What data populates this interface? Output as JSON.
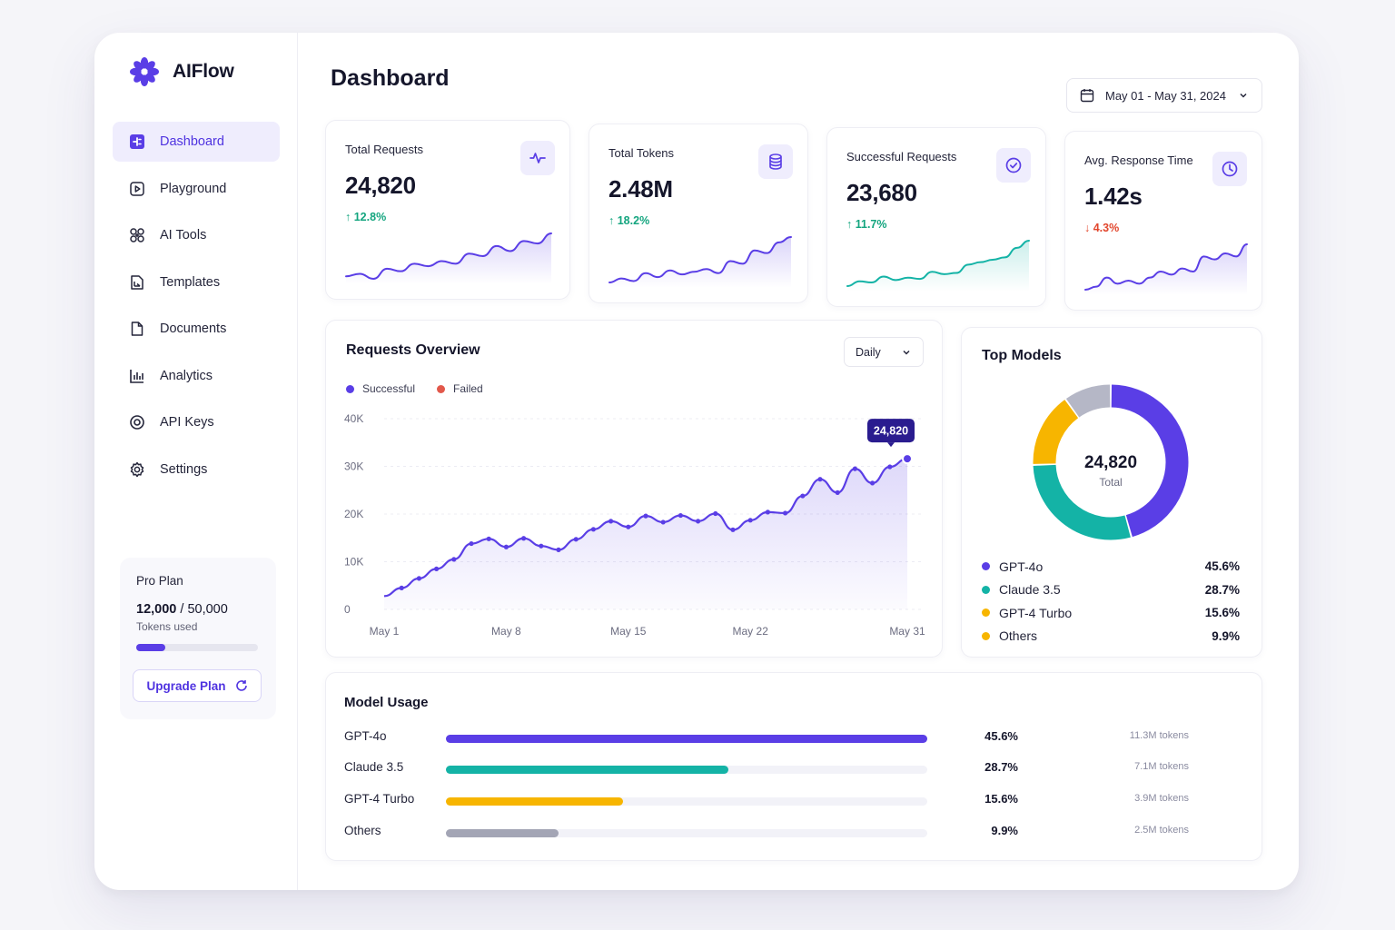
{
  "brand": {
    "name": "AIFlow",
    "accent": "#5a3ee6"
  },
  "sidebar": {
    "items": [
      {
        "label": "Dashboard",
        "icon": "dashboard-icon",
        "active": true
      },
      {
        "label": "Playground",
        "icon": "play-icon",
        "active": false
      },
      {
        "label": "AI Tools",
        "icon": "ai-tools-icon",
        "active": false
      },
      {
        "label": "Templates",
        "icon": "templates-icon",
        "active": false
      },
      {
        "label": "Documents",
        "icon": "document-icon",
        "active": false
      },
      {
        "label": "Analytics",
        "icon": "bar-chart-icon",
        "active": false
      },
      {
        "label": "API Keys",
        "icon": "key-icon",
        "active": false
      },
      {
        "label": "Settings",
        "icon": "gear-icon",
        "active": false
      }
    ],
    "plan": {
      "title": "Pro Plan",
      "used": "12,000",
      "separator": "/",
      "limit": "50,000",
      "sub": "Tokens used",
      "progress": 0.24,
      "upgrade_label": "Upgrade Plan"
    }
  },
  "header": {
    "title": "Dashboard",
    "date_range": "May 01 - May 31, 2024"
  },
  "kpis": [
    {
      "label": "Total Requests",
      "value": "24,820",
      "change": "12.8%",
      "direction": "up",
      "icon": "activity-icon",
      "spark_color": "#5a3ee6",
      "spark": [
        10,
        12,
        8,
        16,
        14,
        20,
        18,
        22,
        20,
        28,
        26,
        34,
        30,
        38,
        36,
        44
      ]
    },
    {
      "label": "Total Tokens",
      "value": "2.48M",
      "change": "18.2%",
      "direction": "up",
      "icon": "database-icon",
      "spark_color": "#5a3ee6",
      "spark": [
        8,
        11,
        9,
        15,
        12,
        17,
        14,
        16,
        18,
        15,
        24,
        22,
        32,
        30,
        38,
        42
      ]
    },
    {
      "label": "Successful Requests",
      "value": "23,680",
      "change": "11.7%",
      "direction": "up",
      "icon": "check-circle-icon",
      "spark_color": "#14b3a6",
      "spark": [
        6,
        10,
        9,
        14,
        11,
        13,
        12,
        18,
        16,
        17,
        24,
        26,
        28,
        30,
        38,
        44
      ]
    },
    {
      "label": "Avg. Response Time",
      "value": "1.42s",
      "change": "4.3%",
      "direction": "down",
      "icon": "clock-icon",
      "spark_color": "#5a3ee6",
      "spark": [
        8,
        10,
        16,
        12,
        14,
        12,
        16,
        20,
        18,
        22,
        20,
        30,
        28,
        32,
        30,
        38
      ]
    }
  ],
  "requests_overview": {
    "title": "Requests Overview",
    "select_value": "Daily",
    "legend": [
      {
        "name": "Successful",
        "color": "#5a3ee6"
      },
      {
        "name": "Failed",
        "color": "#e2584b"
      }
    ],
    "tooltip": "24,820"
  },
  "top_models": {
    "title": "Top Models",
    "center_value": "24,820",
    "center_label": "Total",
    "models": [
      {
        "name": "GPT-4o",
        "pct": "45.6%",
        "value": 45.6,
        "color": "#5a3ee6"
      },
      {
        "name": "Claude 3.5",
        "pct": "28.7%",
        "value": 28.7,
        "color": "#14b3a6"
      },
      {
        "name": "GPT-4 Turbo",
        "pct": "15.6%",
        "value": 15.6,
        "color": "#f7b500"
      },
      {
        "name": "Others",
        "pct": "9.9%",
        "value": 9.9,
        "color": "#f7b500"
      }
    ],
    "donut_others_color": "#b5b7c6"
  },
  "model_usage": {
    "title": "Model Usage",
    "rows": [
      {
        "name": "GPT-4o",
        "fraction": 1.0,
        "pct": "45.6%",
        "tokens": "11.3M tokens",
        "color": "#5a3ee6"
      },
      {
        "name": "Claude 3.5",
        "fraction": 0.586,
        "pct": "28.7%",
        "tokens": "7.1M tokens",
        "color": "#14b3a6"
      },
      {
        "name": "GPT-4 Turbo",
        "fraction": 0.368,
        "pct": "15.6%",
        "tokens": "3.9M tokens",
        "color": "#f7b500"
      },
      {
        "name": "Others",
        "fraction": 0.234,
        "pct": "9.9%",
        "tokens": "2.5M tokens",
        "color": "#a3a5b5"
      }
    ]
  },
  "chart_data": {
    "type": "area",
    "title": "Requests Overview",
    "xlabel": "",
    "ylabel": "",
    "ylim": [
      0,
      40000
    ],
    "yticks": [
      "0",
      "10K",
      "20K",
      "30K",
      "40K"
    ],
    "xticks": [
      "May 1",
      "May 8",
      "May 15",
      "May 22",
      "May 31"
    ],
    "x": [
      "May 1",
      "May 2",
      "May 3",
      "May 4",
      "May 5",
      "May 6",
      "May 7",
      "May 8",
      "May 9",
      "May 10",
      "May 11",
      "May 12",
      "May 13",
      "May 14",
      "May 15",
      "May 16",
      "May 17",
      "May 18",
      "May 19",
      "May 20",
      "May 21",
      "May 22",
      "May 23",
      "May 24",
      "May 25",
      "May 26",
      "May 27",
      "May 28",
      "May 29",
      "May 30",
      "May 31"
    ],
    "series": [
      {
        "name": "Successful",
        "values": [
          2800,
          4500,
          6500,
          8500,
          10500,
          13800,
          14800,
          13100,
          14900,
          13300,
          12500,
          14700,
          16800,
          18500,
          17300,
          19600,
          18300,
          19700,
          18500,
          20100,
          16700,
          18700,
          20400,
          20200,
          23800,
          27300,
          24500,
          29500,
          26500,
          29900,
          31600
        ]
      }
    ],
    "grid": true,
    "legend_position": "top-left"
  }
}
